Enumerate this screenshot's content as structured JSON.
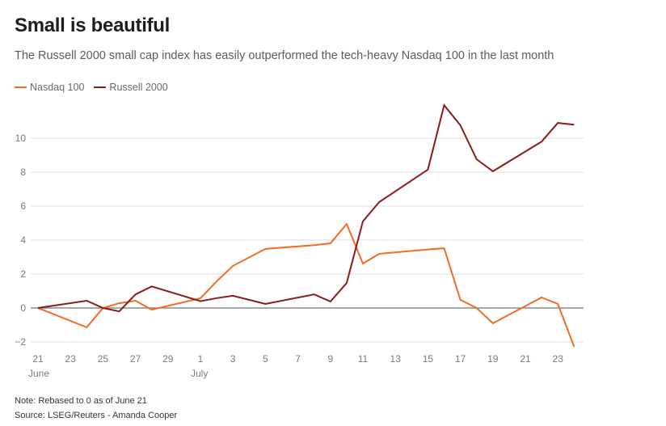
{
  "header": {
    "title": "Small is beautiful",
    "subtitle": "The Russell 2000 small cap index has easily outperformed the tech-heavy Nasdaq 100 in the last month"
  },
  "footer": {
    "note": "Note: Rebased to 0 as of June 21",
    "source": "Source: LSEG/Reuters - Amanda Cooper"
  },
  "chart_data": {
    "type": "line",
    "title": "Small is beautiful",
    "subtitle": "The Russell 2000 small cap index has easily outperformed the tech-heavy Nasdaq 100 in the last month",
    "xlabel": "",
    "ylabel": "",
    "ylim": [
      -2,
      12
    ],
    "yticks": [
      -2,
      0,
      2,
      4,
      6,
      8,
      10
    ],
    "ytick_labels": [
      "−2",
      "0",
      "2",
      "4",
      "6",
      "8",
      "10"
    ],
    "xlim_day_index": [
      0,
      33
    ],
    "xticks": [
      {
        "day": 0,
        "label": "21",
        "sublabel": "June"
      },
      {
        "day": 2,
        "label": "23"
      },
      {
        "day": 4,
        "label": "25"
      },
      {
        "day": 6,
        "label": "27"
      },
      {
        "day": 8,
        "label": "29"
      },
      {
        "day": 10,
        "label": "1",
        "sublabel": "July"
      },
      {
        "day": 12,
        "label": "3"
      },
      {
        "day": 14,
        "label": "5"
      },
      {
        "day": 16,
        "label": "7"
      },
      {
        "day": 18,
        "label": "9"
      },
      {
        "day": 20,
        "label": "11"
      },
      {
        "day": 22,
        "label": "13"
      },
      {
        "day": 24,
        "label": "15"
      },
      {
        "day": 26,
        "label": "17"
      },
      {
        "day": 28,
        "label": "19"
      },
      {
        "day": 30,
        "label": "21"
      },
      {
        "day": 32,
        "label": "23"
      }
    ],
    "grid": true,
    "legend": "top-left",
    "series": [
      {
        "name": "Nasdaq 100",
        "color": "#f26c23",
        "points": [
          {
            "date": "Jun 21",
            "day": 0,
            "value": 0
          },
          {
            "date": "Jun 24",
            "day": 3,
            "value": -1.14
          },
          {
            "date": "Jun 25",
            "day": 4,
            "value": 0
          },
          {
            "date": "Jun 26",
            "day": 5,
            "value": 0.28
          },
          {
            "date": "Jun 27",
            "day": 6,
            "value": 0.43
          },
          {
            "date": "Jun 28",
            "day": 7,
            "value": -0.1
          },
          {
            "date": "Jul 1",
            "day": 10,
            "value": 0.57
          },
          {
            "date": "Jul 2",
            "day": 11,
            "value": 1.57
          },
          {
            "date": "Jul 3",
            "day": 12,
            "value": 2.48
          },
          {
            "date": "Jul 5",
            "day": 14,
            "value": 3.48
          },
          {
            "date": "Jul 8",
            "day": 17,
            "value": 3.7
          },
          {
            "date": "Jul 9",
            "day": 18,
            "value": 3.81
          },
          {
            "date": "Jul 10",
            "day": 19,
            "value": 4.95
          },
          {
            "date": "Jul 11",
            "day": 20,
            "value": 2.62
          },
          {
            "date": "Jul 12",
            "day": 21,
            "value": 3.19
          },
          {
            "date": "Jul 15",
            "day": 24,
            "value": 3.45
          },
          {
            "date": "Jul 16",
            "day": 25,
            "value": 3.52
          },
          {
            "date": "Jul 17",
            "day": 26,
            "value": 0.48
          },
          {
            "date": "Jul 18",
            "day": 27,
            "value": 0
          },
          {
            "date": "Jul 19",
            "day": 28,
            "value": -0.9
          },
          {
            "date": "Jul 22",
            "day": 31,
            "value": 0.62
          },
          {
            "date": "Jul 23",
            "day": 32,
            "value": 0.24
          },
          {
            "date": "Jul 24",
            "day": 33,
            "value": -2.28
          }
        ]
      },
      {
        "name": "Russell 2000",
        "color": "#8b1a1a",
        "points": [
          {
            "date": "Jun 21",
            "day": 0,
            "value": 0
          },
          {
            "date": "Jun 24",
            "day": 3,
            "value": 0.43
          },
          {
            "date": "Jun 25",
            "day": 4,
            "value": 0
          },
          {
            "date": "Jun 26",
            "day": 5,
            "value": -0.2
          },
          {
            "date": "Jun 27",
            "day": 6,
            "value": 0.8
          },
          {
            "date": "Jun 28",
            "day": 7,
            "value": 1.27
          },
          {
            "date": "Jul 1",
            "day": 10,
            "value": 0.4
          },
          {
            "date": "Jul 2",
            "day": 11,
            "value": 0.58
          },
          {
            "date": "Jul 3",
            "day": 12,
            "value": 0.72
          },
          {
            "date": "Jul 5",
            "day": 14,
            "value": 0.24
          },
          {
            "date": "Jul 8",
            "day": 17,
            "value": 0.8
          },
          {
            "date": "Jul 9",
            "day": 18,
            "value": 0.38
          },
          {
            "date": "Jul 10",
            "day": 19,
            "value": 1.47
          },
          {
            "date": "Jul 11",
            "day": 20,
            "value": 5.1
          },
          {
            "date": "Jul 12",
            "day": 21,
            "value": 6.24
          },
          {
            "date": "Jul 15",
            "day": 24,
            "value": 8.15
          },
          {
            "date": "Jul 16",
            "day": 25,
            "value": 11.95
          },
          {
            "date": "Jul 17",
            "day": 26,
            "value": 10.76
          },
          {
            "date": "Jul 18",
            "day": 27,
            "value": 8.76
          },
          {
            "date": "Jul 19",
            "day": 28,
            "value": 8.05
          },
          {
            "date": "Jul 22",
            "day": 31,
            "value": 9.8
          },
          {
            "date": "Jul 23",
            "day": 32,
            "value": 10.9
          },
          {
            "date": "Jul 24",
            "day": 33,
            "value": 10.8
          }
        ]
      }
    ]
  }
}
